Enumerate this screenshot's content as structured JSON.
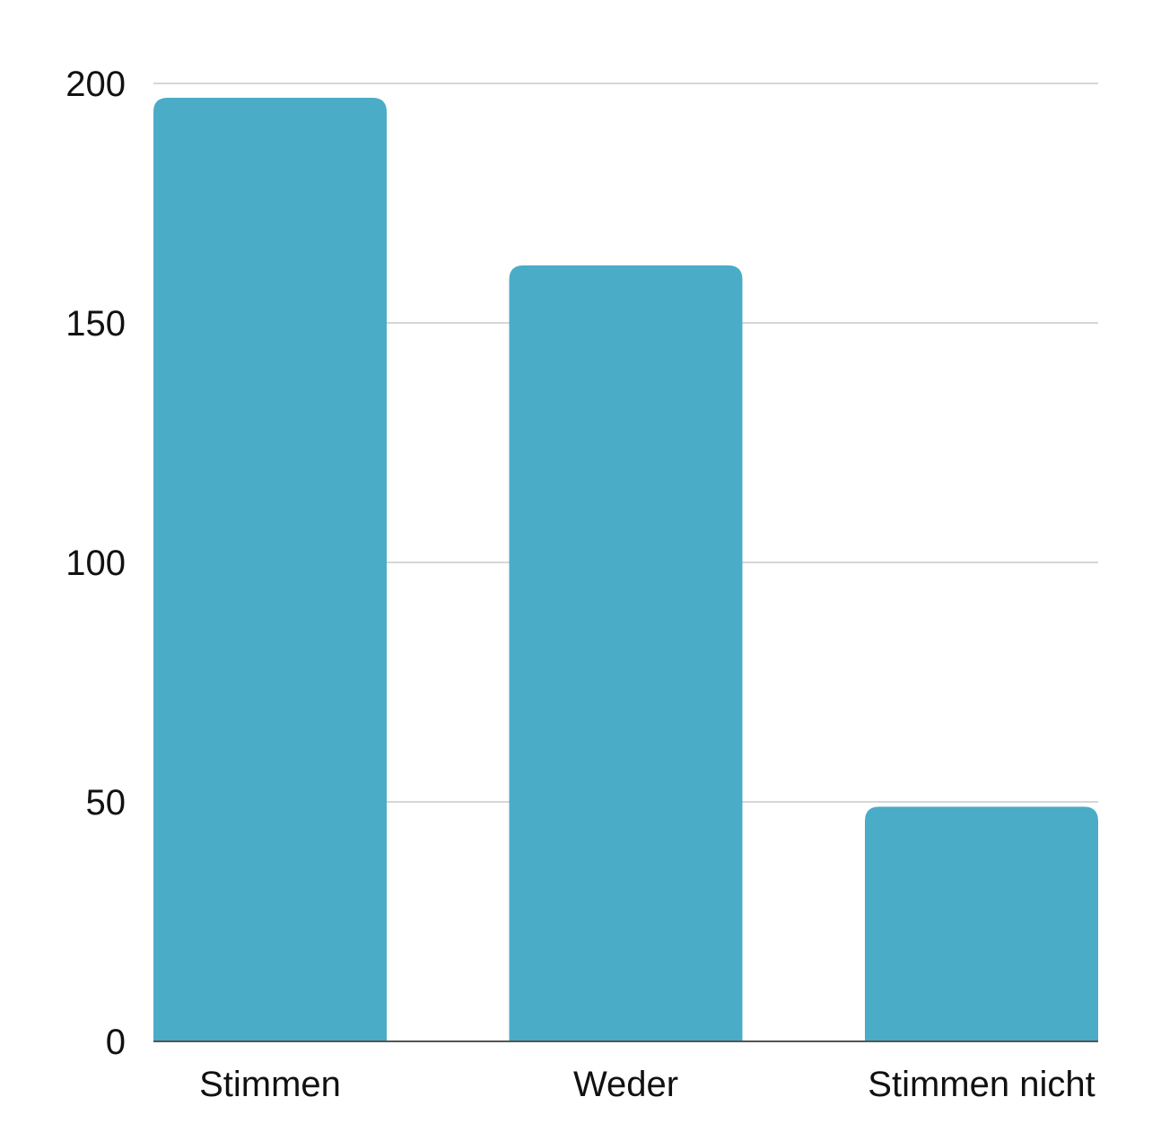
{
  "chart_data": {
    "type": "bar",
    "title": "",
    "xlabel": "",
    "ylabel": "",
    "categories": [
      "Stimmen",
      "Weder",
      "Stimmen nicht"
    ],
    "values": [
      197,
      162,
      49
    ],
    "ylim": [
      0,
      200
    ],
    "yticks": [
      0,
      50,
      100,
      150,
      200
    ],
    "ytick_labels": [
      "0",
      "50",
      "100",
      "150",
      "200"
    ],
    "grid": true,
    "legend": "none",
    "bar_color": "#4aacc7",
    "title_color": "#1d3f6e"
  }
}
